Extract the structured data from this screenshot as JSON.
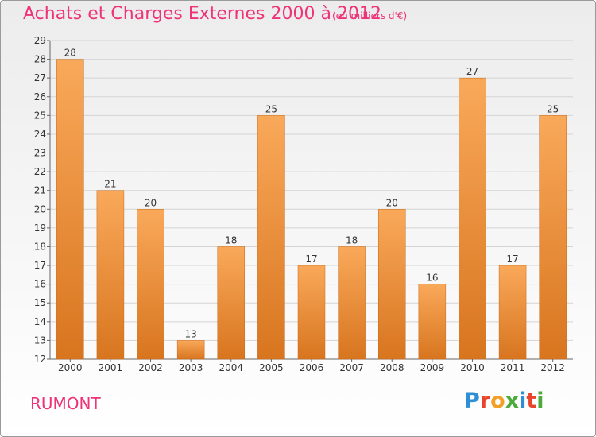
{
  "header": {
    "title": "Achats et Charges Externes 2000 à 2012",
    "subtitle": "(en milliers d'€)"
  },
  "footer": {
    "commune": "RUMONT",
    "logo": "Proxiti"
  },
  "logo_letters": [
    {
      "ch": "P",
      "color": "#2e8fd6"
    },
    {
      "ch": "r",
      "color": "#e8452c"
    },
    {
      "ch": "o",
      "color": "#f2a126"
    },
    {
      "ch": "x",
      "color": "#4bab3a"
    },
    {
      "ch": "i",
      "color": "#2e8fd6"
    },
    {
      "ch": "t",
      "color": "#e8452c"
    },
    {
      "ch": "i",
      "color": "#4bab3a"
    }
  ],
  "colors": {
    "bar_top": "#f9a95a",
    "bar_bottom": "#d8751f",
    "grid": "#d4d4d4",
    "axis": "#666666",
    "title": "#ee3377"
  },
  "chart_data": {
    "type": "bar",
    "title": "Achats et Charges Externes 2000 à 2012",
    "subtitle": "(en milliers d'€)",
    "categories": [
      "2000",
      "2001",
      "2002",
      "2003",
      "2004",
      "2005",
      "2006",
      "2007",
      "2008",
      "2009",
      "2010",
      "2011",
      "2012"
    ],
    "values": [
      28,
      21,
      20,
      13,
      18,
      25,
      17,
      18,
      20,
      16,
      27,
      17,
      25
    ],
    "ylim": [
      12,
      29
    ],
    "yticks": [
      12,
      13,
      14,
      15,
      16,
      17,
      18,
      19,
      20,
      21,
      22,
      23,
      24,
      25,
      26,
      27,
      28,
      29
    ],
    "grid": true,
    "xlabel": "",
    "ylabel": ""
  }
}
